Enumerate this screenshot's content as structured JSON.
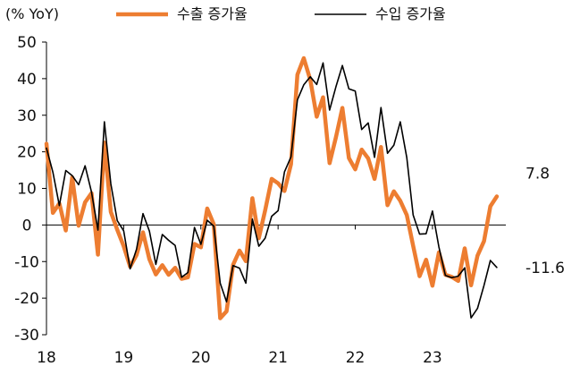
{
  "chart_data": {
    "type": "line",
    "unit_label": "(% YoY)",
    "xlabel": "",
    "ylabel": "",
    "ylim": [
      -30,
      50
    ],
    "y_ticks": [
      "50",
      "40",
      "30",
      "20",
      "10",
      "0",
      "-10",
      "-20",
      "-30"
    ],
    "x_ticks": [
      "18",
      "19",
      "20",
      "21",
      "22",
      "23"
    ],
    "x_tick_positions": [
      2018,
      2019,
      2020,
      2021,
      2022,
      2023
    ],
    "xlim": [
      2018.0,
      2023.95
    ],
    "legend_position": "top",
    "grid": false,
    "series": [
      {
        "name": "수출 증가율",
        "color": "#ED7D31",
        "end_label": "7.8",
        "x": [
          2018.0,
          2018.083,
          2018.167,
          2018.25,
          2018.333,
          2018.417,
          2018.5,
          2018.583,
          2018.667,
          2018.75,
          2018.833,
          2018.917,
          2019.0,
          2019.083,
          2019.167,
          2019.25,
          2019.333,
          2019.417,
          2019.5,
          2019.583,
          2019.667,
          2019.75,
          2019.833,
          2019.917,
          2020.0,
          2020.083,
          2020.167,
          2020.25,
          2020.333,
          2020.417,
          2020.5,
          2020.583,
          2020.667,
          2020.75,
          2020.833,
          2020.917,
          2021.0,
          2021.083,
          2021.167,
          2021.25,
          2021.333,
          2021.417,
          2021.5,
          2021.583,
          2021.667,
          2021.75,
          2021.833,
          2021.917,
          2022.0,
          2022.083,
          2022.167,
          2022.25,
          2022.333,
          2022.417,
          2022.5,
          2022.583,
          2022.667,
          2022.75,
          2022.833,
          2022.917,
          2023.0,
          2023.083,
          2023.167,
          2023.25,
          2023.333,
          2023.417,
          2023.5,
          2023.583,
          2023.667,
          2023.75,
          2023.833
        ],
        "y": [
          22.2,
          3.3,
          5.9,
          -1.5,
          13,
          -0.2,
          6.2,
          8.7,
          -8.1,
          22.5,
          3.6,
          -1.3,
          -5.8,
          -11.4,
          -8.2,
          -2,
          -9.4,
          -13.5,
          -11,
          -13.6,
          -11.7,
          -14.7,
          -14.3,
          -5.2,
          -6.1,
          4.5,
          0.2,
          -25.5,
          -23.6,
          -10.9,
          -7,
          -9.9,
          7.3,
          -3.6,
          4,
          12.6,
          11.4,
          9.3,
          16.6,
          41.1,
          45.6,
          39.7,
          29.6,
          34.9,
          16.9,
          24,
          32,
          18.3,
          15.2,
          20.6,
          18.2,
          12.6,
          21.3,
          5.4,
          9.2,
          6.6,
          2.7,
          -5.7,
          -14,
          -9.5,
          -16.6,
          -7.5,
          -13.6,
          -14.2,
          -15.3,
          -6.4,
          -16.5,
          -8.4,
          -4.4,
          5.1,
          7.8
        ]
      },
      {
        "name": "수입 증가율",
        "color": "#000000",
        "end_label": "-11.6",
        "x": [
          2018.0,
          2018.083,
          2018.167,
          2018.25,
          2018.333,
          2018.417,
          2018.5,
          2018.583,
          2018.667,
          2018.75,
          2018.833,
          2018.917,
          2019.0,
          2019.083,
          2019.167,
          2019.25,
          2019.333,
          2019.417,
          2019.5,
          2019.583,
          2019.667,
          2019.75,
          2019.833,
          2019.917,
          2020.0,
          2020.083,
          2020.167,
          2020.25,
          2020.333,
          2020.417,
          2020.5,
          2020.583,
          2020.667,
          2020.75,
          2020.833,
          2020.917,
          2021.0,
          2021.083,
          2021.167,
          2021.25,
          2021.333,
          2021.417,
          2021.5,
          2021.583,
          2021.667,
          2021.75,
          2021.833,
          2021.917,
          2022.0,
          2022.083,
          2022.167,
          2022.25,
          2022.333,
          2022.417,
          2022.5,
          2022.583,
          2022.667,
          2022.75,
          2022.833,
          2022.917,
          2023.0,
          2023.083,
          2023.167,
          2023.25,
          2023.333,
          2023.417,
          2023.5,
          2023.583,
          2023.667,
          2023.75,
          2023.833
        ],
        "y": [
          21,
          14.4,
          5.3,
          14.9,
          13.5,
          11,
          16.2,
          9,
          -1.4,
          28.2,
          11.3,
          1.2,
          -1.6,
          -12,
          -6.6,
          3.1,
          -1.7,
          -10.8,
          -2.6,
          -4.2,
          -5.6,
          -14.3,
          -13,
          -0.7,
          -5.3,
          1.3,
          -0.3,
          -15.9,
          -21,
          -11.1,
          -11.8,
          -15.9,
          1.6,
          -5.8,
          -3.6,
          2.4,
          3.9,
          14.5,
          18.6,
          34.2,
          38.3,
          40.5,
          38.4,
          44.3,
          31.4,
          37.8,
          43.6,
          37.2,
          36.6,
          26.1,
          27.9,
          18.5,
          32.1,
          19.6,
          21.8,
          28.2,
          18.4,
          2.7,
          -2.5,
          -2.4,
          3.8,
          -6,
          -13.8,
          -14.4,
          -14,
          -11.7,
          -25.4,
          -22.8,
          -16.5,
          -9.7,
          -11.6
        ]
      }
    ]
  }
}
